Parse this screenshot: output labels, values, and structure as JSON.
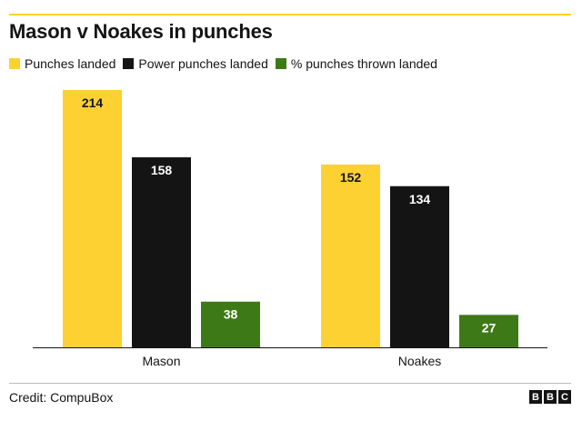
{
  "title": "Mason v Noakes in punches",
  "credit": "Credit: CompuBox",
  "logo": {
    "letters": [
      "B",
      "B",
      "C"
    ]
  },
  "colors": {
    "accent_rule": "#fcd22c",
    "text": "#141414"
  },
  "chart_data": {
    "type": "bar",
    "title": "Mason v Noakes in punches",
    "xlabel": "",
    "ylabel": "",
    "ylim": [
      0,
      220
    ],
    "grid": false,
    "legend_position": "top-left",
    "categories": [
      "Mason",
      "Noakes"
    ],
    "series": [
      {
        "name": "Punches landed",
        "color": "#fdd132",
        "label_color": "#141414",
        "values": [
          214,
          152
        ]
      },
      {
        "name": "Power punches landed",
        "color": "#141414",
        "label_color": "#ffffff",
        "values": [
          158,
          134
        ]
      },
      {
        "name": "% punches thrown landed",
        "color": "#3d7a17",
        "label_color": "#ffffff",
        "values": [
          38,
          27
        ]
      }
    ]
  }
}
